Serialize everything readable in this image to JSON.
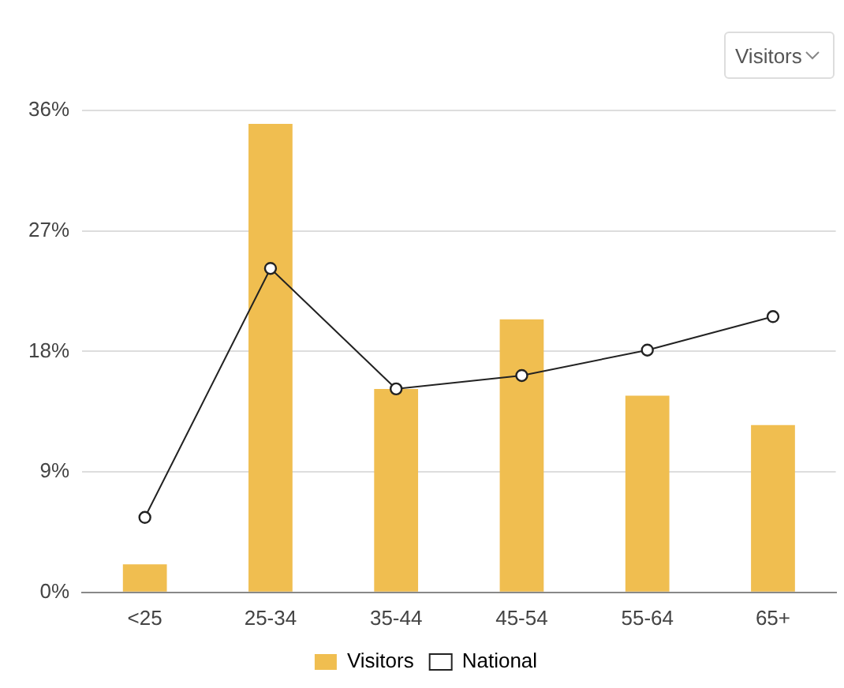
{
  "chart_data": {
    "type": "bar",
    "categories": [
      "<25",
      "25-34",
      "35-44",
      "45-54",
      "55-64",
      "65+"
    ],
    "series": [
      {
        "name": "Visitors",
        "color": "#f0be50",
        "values": [
          2.1,
          35,
          15.2,
          20.4,
          14.7,
          12.5
        ]
      },
      {
        "name": "National",
        "type": "line",
        "color": "#222222",
        "values": [
          5.6,
          24.2,
          15.2,
          16.2,
          18.1,
          20.6
        ]
      }
    ],
    "ylim": [
      0,
      36
    ],
    "yticks": [
      {
        "value": 0,
        "label": "0%"
      },
      {
        "value": 9,
        "label": "9%"
      },
      {
        "value": 18,
        "label": "18%"
      },
      {
        "value": 27,
        "label": "27%"
      },
      {
        "value": 36,
        "label": "36%"
      }
    ],
    "grid": "y",
    "legend": "bottom",
    "marker": "circle",
    "line_style": "solid",
    "annotations": [
      "Visitors"
    ]
  }
}
